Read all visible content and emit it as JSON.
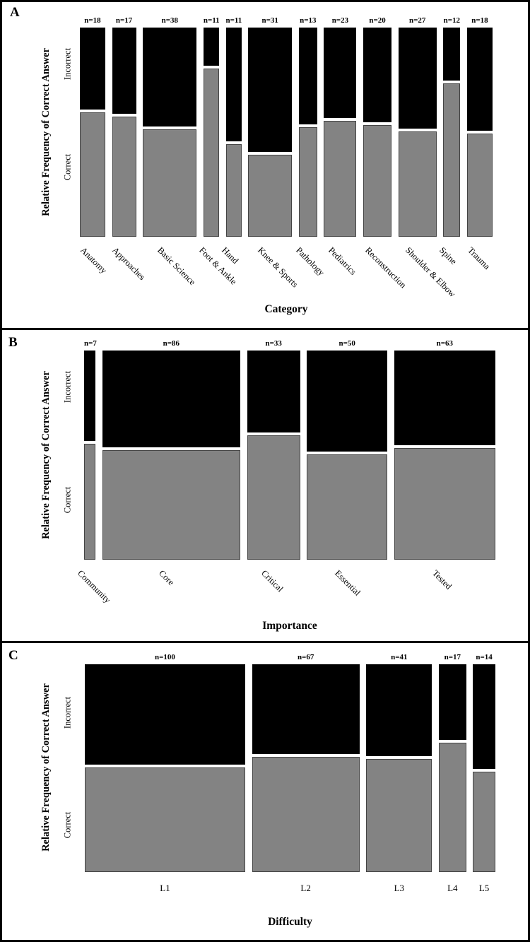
{
  "figure": {
    "background": "#ffffff",
    "border_color": "#000000"
  },
  "colors": {
    "incorrect_fill": "#000000",
    "correct_fill": "#838383",
    "correct_border": "#444444"
  },
  "chart_data": [
    {
      "type": "mosaic",
      "panel_label": "A",
      "ylabel": "Relative Frequency of Correct Answer",
      "xlabel": "Category",
      "ytick_labels": [
        "Incorrect",
        "Correct"
      ],
      "legend_position": "none",
      "bar_width_mode": "proportional-to-n",
      "category_label_rotation": 45,
      "categories": [
        "Anatomy",
        "Approaches",
        "Basic Science",
        "Foot & Ankle",
        "Hand",
        "Knee & Sports",
        "Pathology",
        "Pediatrics",
        "Reconstruction",
        "Shoulder & Elbow",
        "Spine",
        "Trauma"
      ],
      "n": [
        18,
        17,
        38,
        11,
        11,
        31,
        13,
        23,
        20,
        27,
        12,
        18
      ],
      "n_labels": [
        "n=18",
        "n=17",
        "n=38",
        "n=11",
        "n=11",
        "n=31",
        "n=13",
        "n=23",
        "n=20",
        "n=27",
        "n=12",
        "n=18"
      ],
      "correct_fraction": [
        0.6,
        0.58,
        0.52,
        0.81,
        0.45,
        0.4,
        0.53,
        0.56,
        0.54,
        0.51,
        0.74,
        0.5
      ]
    },
    {
      "type": "mosaic",
      "panel_label": "B",
      "ylabel": "Relative Frequency of Correct Answer",
      "xlabel": "Importance",
      "ytick_labels": [
        "Incorrect",
        "Correct"
      ],
      "legend_position": "none",
      "bar_width_mode": "proportional-to-n",
      "category_label_rotation": 45,
      "categories": [
        "Community",
        "Core",
        "Critical",
        "Essential",
        "Tested"
      ],
      "n": [
        7,
        86,
        33,
        50,
        63
      ],
      "n_labels": [
        "n=7",
        "n=86",
        "n=33",
        "n=50",
        "n=63"
      ],
      "correct_fraction": [
        0.56,
        0.53,
        0.6,
        0.51,
        0.54
      ]
    },
    {
      "type": "mosaic",
      "panel_label": "C",
      "ylabel": "Relative Frequency of Correct Answer",
      "xlabel": "Difficulty",
      "ytick_labels": [
        "Incorrect",
        "Correct"
      ],
      "legend_position": "none",
      "bar_width_mode": "proportional-to-n",
      "category_label_rotation": 0,
      "categories": [
        "L1",
        "L2",
        "L3",
        "L4",
        "L5"
      ],
      "n": [
        100,
        67,
        41,
        17,
        14
      ],
      "n_labels": [
        "n=100",
        "n=67",
        "n=41",
        "n=17",
        "n=14"
      ],
      "correct_fraction": [
        0.51,
        0.56,
        0.55,
        0.63,
        0.49
      ]
    }
  ]
}
